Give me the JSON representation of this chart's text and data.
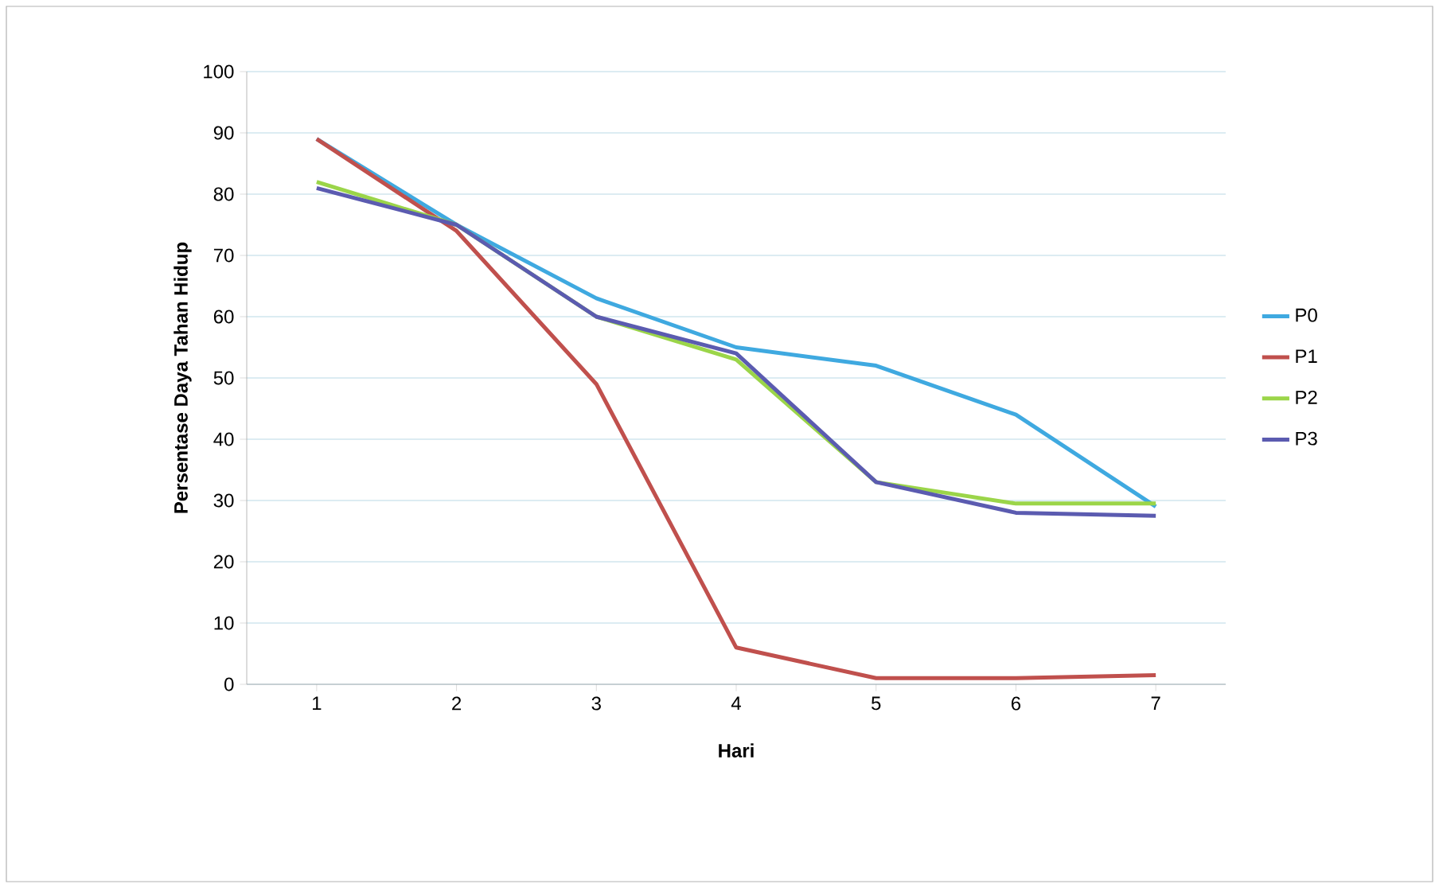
{
  "chart_data": {
    "type": "line",
    "xlabel": "Hari",
    "ylabel": "Persentase Daya  Tahan Hidup",
    "categories": [
      "1",
      "2",
      "3",
      "4",
      "5",
      "6",
      "7"
    ],
    "series": [
      {
        "name": "P0",
        "color": "#3fa9e0",
        "values": [
          89,
          75,
          63,
          55,
          52,
          44,
          29
        ]
      },
      {
        "name": "P1",
        "color": "#c0504d",
        "values": [
          89,
          74,
          49,
          6,
          1,
          1,
          1.5
        ]
      },
      {
        "name": "P2",
        "color": "#9bd549",
        "values": [
          82,
          75,
          60,
          53,
          33,
          29.5,
          29.5
        ]
      },
      {
        "name": "P3",
        "color": "#5b5bb0",
        "values": [
          81,
          75,
          60,
          54,
          33,
          28,
          27.5
        ]
      }
    ],
    "ylim": [
      0,
      100
    ],
    "yticks": [
      0,
      10,
      20,
      30,
      40,
      50,
      60,
      70,
      80,
      90,
      100
    ],
    "grid": "y",
    "legend": "right",
    "marker": "none",
    "line_style": "solid"
  }
}
